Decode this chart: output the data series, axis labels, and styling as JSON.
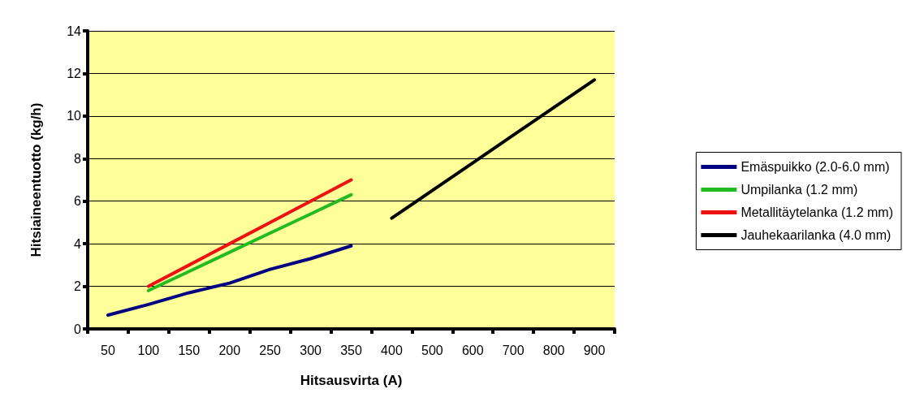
{
  "chart_data": {
    "type": "line",
    "xlabel": "Hitsausvirta (A)",
    "ylabel": "Hitsiaineentuotto (kg/h)",
    "categories": [
      "50",
      "100",
      "150",
      "200",
      "250",
      "300",
      "350",
      "400",
      "500",
      "600",
      "700",
      "800",
      "900"
    ],
    "series": [
      {
        "name": "Emäspuikko (2.0-6.0 mm)",
        "color": "#000080",
        "values": [
          0.65,
          1.15,
          1.7,
          2.15,
          2.8,
          3.3,
          3.9,
          null,
          null,
          null,
          null,
          null,
          null
        ]
      },
      {
        "name": "Umpilanka (1.2 mm)",
        "color": "#22bb22",
        "values": [
          null,
          1.8,
          2.7,
          3.6,
          4.5,
          5.4,
          6.3,
          null,
          null,
          null,
          null,
          null,
          null
        ]
      },
      {
        "name": "Metallitäytelanka (1.2 mm)",
        "color": "#ee1111",
        "values": [
          null,
          2.0,
          3.0,
          4.0,
          5.0,
          6.0,
          7.0,
          null,
          null,
          null,
          null,
          null,
          null
        ]
      },
      {
        "name": "Jauhekaarilanka (4.0 mm)",
        "color": "#000000",
        "values": [
          null,
          null,
          null,
          null,
          null,
          null,
          null,
          5.2,
          6.5,
          7.8,
          9.1,
          10.4,
          11.7
        ]
      }
    ],
    "ylim": [
      0,
      14
    ],
    "yticks": [
      0,
      2,
      4,
      6,
      8,
      10,
      12,
      14
    ],
    "grid": "y",
    "legend": "right",
    "marker": "none",
    "line_style": "solid"
  }
}
